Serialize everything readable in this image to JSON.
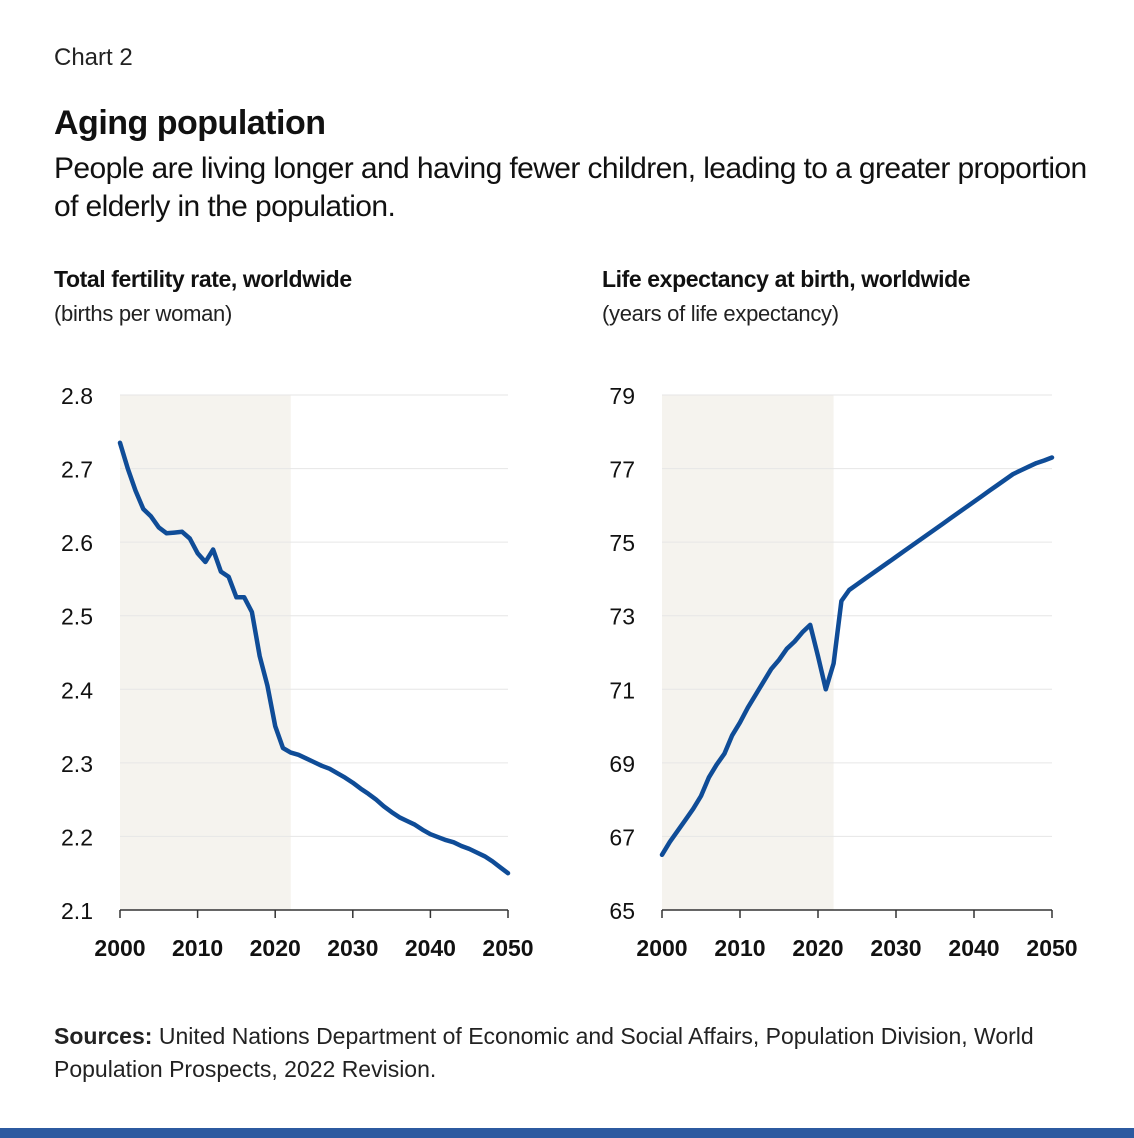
{
  "header": {
    "chart_number": "Chart 2",
    "title": "Aging population",
    "subtitle": "People are living longer and having fewer children, leading to a greater proportion of elderly in the population."
  },
  "sources": {
    "label": "Sources:",
    "text": " United Nations Department of Economic and Social Affairs, Population Division, World Population Prospects, 2022 Revision."
  },
  "colors": {
    "line": "#0f4c97",
    "shade": "#f5f3ee",
    "grid": "#e6e6e6",
    "axis": "#333333",
    "bottom_bar": "#2c5aa0"
  },
  "chart_data": [
    {
      "type": "line",
      "title": "Total fertility rate, worldwide",
      "unit_label": "(births per woman)",
      "xlim": [
        2000,
        2050
      ],
      "ylim": [
        2.1,
        2.8
      ],
      "x_ticks": [
        "2000",
        "2010",
        "2020",
        "2030",
        "2040",
        "2050"
      ],
      "y_ticks": [
        "2.1",
        "2.2",
        "2.3",
        "2.4",
        "2.5",
        "2.6",
        "2.7",
        "2.8"
      ],
      "shaded_range": [
        2000,
        2022
      ],
      "grid": true,
      "x": [
        2000,
        2001,
        2002,
        2003,
        2004,
        2005,
        2006,
        2007,
        2008,
        2009,
        2010,
        2011,
        2012,
        2013,
        2014,
        2015,
        2016,
        2017,
        2018,
        2019,
        2020,
        2021,
        2022,
        2023,
        2024,
        2025,
        2026,
        2027,
        2028,
        2029,
        2030,
        2031,
        2032,
        2033,
        2034,
        2035,
        2036,
        2037,
        2038,
        2039,
        2040,
        2041,
        2042,
        2043,
        2044,
        2045,
        2046,
        2047,
        2048,
        2049,
        2050
      ],
      "values": [
        2.735,
        2.7,
        2.67,
        2.645,
        2.635,
        2.62,
        2.612,
        2.613,
        2.614,
        2.605,
        2.585,
        2.573,
        2.59,
        2.56,
        2.553,
        2.525,
        2.525,
        2.505,
        2.445,
        2.405,
        2.35,
        2.32,
        2.314,
        2.311,
        2.306,
        2.301,
        2.296,
        2.292,
        2.286,
        2.28,
        2.273,
        2.265,
        2.258,
        2.25,
        2.241,
        2.233,
        2.226,
        2.221,
        2.216,
        2.209,
        2.203,
        2.199,
        2.195,
        2.192,
        2.187,
        2.183,
        2.178,
        2.173,
        2.166,
        2.158,
        2.15
      ]
    },
    {
      "type": "line",
      "title": "Life expectancy at birth, worldwide",
      "unit_label": "(years of life expectancy)",
      "xlim": [
        2000,
        2050
      ],
      "ylim": [
        65,
        79
      ],
      "x_ticks": [
        "2000",
        "2010",
        "2020",
        "2030",
        "2040",
        "2050"
      ],
      "y_ticks": [
        "65",
        "67",
        "69",
        "71",
        "73",
        "75",
        "77",
        "79"
      ],
      "shaded_range": [
        2000,
        2022
      ],
      "grid": true,
      "x": [
        2000,
        2001,
        2002,
        2003,
        2004,
        2005,
        2006,
        2007,
        2008,
        2009,
        2010,
        2011,
        2012,
        2013,
        2014,
        2015,
        2016,
        2017,
        2018,
        2019,
        2020,
        2021,
        2022,
        2023,
        2024,
        2025,
        2026,
        2027,
        2028,
        2029,
        2030,
        2031,
        2032,
        2033,
        2034,
        2035,
        2036,
        2037,
        2038,
        2039,
        2040,
        2041,
        2042,
        2043,
        2044,
        2045,
        2046,
        2047,
        2048,
        2049,
        2050
      ],
      "values": [
        66.5,
        66.85,
        67.15,
        67.45,
        67.75,
        68.1,
        68.6,
        68.95,
        69.25,
        69.75,
        70.1,
        70.5,
        70.85,
        71.2,
        71.55,
        71.8,
        72.1,
        72.3,
        72.55,
        72.75,
        71.9,
        71.0,
        71.7,
        73.4,
        73.7,
        73.85,
        74.0,
        74.15,
        74.3,
        74.45,
        74.6,
        74.75,
        74.9,
        75.05,
        75.2,
        75.35,
        75.5,
        75.65,
        75.8,
        75.95,
        76.1,
        76.25,
        76.4,
        76.55,
        76.7,
        76.85,
        76.95,
        77.05,
        77.15,
        77.22,
        77.3
      ]
    }
  ]
}
